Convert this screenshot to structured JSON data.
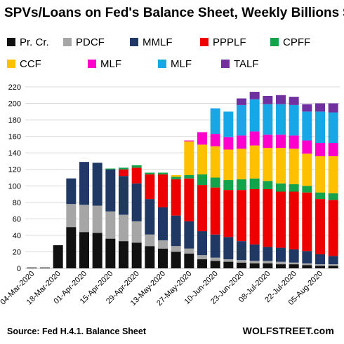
{
  "title": "SPVs/Loans  on Fed's Balance Sheet, Weekly Billions $",
  "source": "Source: Fed H.4.1. Balance Sheet",
  "brand": "WOLFSTREET.com",
  "chart_data": {
    "type": "bar",
    "stacked": true,
    "grid": true,
    "legend_position": "top",
    "ylim": [
      0,
      220
    ],
    "yticks": [
      0,
      20,
      40,
      60,
      80,
      100,
      120,
      140,
      160,
      180,
      200,
      220
    ],
    "categories": [
      "04-Mar-2020",
      "11-Mar-2020",
      "18-Mar-2020",
      "25-Mar-2020",
      "01-Apr-2020",
      "08-Apr-2020",
      "15-Apr-2020",
      "22-Apr-2020",
      "29-Apr-2020",
      "06-May-2020",
      "13-May-2020",
      "20-May-2020",
      "27-May-2020",
      "03-Jun-2020",
      "10-Jun-2020",
      "17-Jun-2020",
      "23-Jun-2020",
      "01-Jul-2020",
      "08-Jul-2020",
      "15-Jul-2020",
      "22-Jul-2020",
      "29-Jul-2020",
      "05-Aug-2020",
      "12-Aug-2020"
    ],
    "x_tick_labels": [
      "04-Mar-2020",
      "18-Mar-2020",
      "01-Apr-2020",
      "15-Apr-2020",
      "29-Apr-2020",
      "13-May-2020",
      "27-May-2020",
      "10-Jun-2020",
      "23-Jun-2020",
      "08-Jul-2020",
      "22-Jul-2020",
      "05-Aug-2020"
    ],
    "series": [
      {
        "name": "Pr. Cr.",
        "color": "#111111",
        "values": [
          1,
          1,
          28,
          50,
          44,
          43,
          36,
          33,
          31,
          27,
          24,
          20,
          18,
          11,
          9,
          8,
          7,
          6,
          6,
          5,
          5,
          4,
          3,
          3
        ]
      },
      {
        "name": "PDCF",
        "color": "#a6a6a6",
        "values": [
          0,
          0,
          0,
          28,
          33,
          33,
          33,
          32,
          26,
          14,
          10,
          7,
          6,
          5,
          4,
          3,
          3,
          3,
          3,
          3,
          2,
          2,
          2,
          2
        ]
      },
      {
        "name": "MMLF",
        "color": "#1f3864",
        "values": [
          0,
          0,
          0,
          31,
          52,
          52,
          51,
          47,
          46,
          43,
          40,
          37,
          33,
          29,
          28,
          27,
          23,
          20,
          17,
          17,
          16,
          15,
          12,
          10
        ]
      },
      {
        "name": "PPPLF",
        "color": "#ee0000",
        "values": [
          0,
          0,
          0,
          0,
          0,
          0,
          0,
          8,
          19,
          30,
          40,
          44,
          52,
          56,
          57,
          57,
          62,
          67,
          70,
          68,
          70,
          71,
          67,
          68
        ]
      },
      {
        "name": "CPFF",
        "color": "#13a34a",
        "values": [
          0,
          0,
          0,
          0,
          0,
          0,
          1,
          2,
          3,
          2,
          2,
          3,
          4,
          13,
          12,
          12,
          13,
          13,
          10,
          10,
          9,
          8,
          8,
          8
        ]
      },
      {
        "name": "CCF",
        "color": "#ffc000",
        "values": [
          0,
          0,
          0,
          0,
          0,
          0,
          0,
          0,
          0,
          0,
          0,
          2,
          41,
          36,
          38,
          37,
          37,
          40,
          40,
          43,
          43,
          39,
          44,
          45
        ]
      },
      {
        "name": "MLF",
        "color": "#ff00cc",
        "values": [
          0,
          0,
          0,
          0,
          0,
          0,
          0,
          0,
          0,
          0,
          0,
          0,
          1,
          15,
          15,
          15,
          16,
          17,
          16,
          16,
          16,
          16,
          16,
          16
        ]
      },
      {
        "name": "MLF",
        "color": "#18a7e6",
        "values": [
          0,
          0,
          0,
          0,
          0,
          0,
          0,
          0,
          0,
          0,
          0,
          0,
          0,
          0,
          31,
          31,
          37,
          39,
          37,
          37,
          37,
          35,
          38,
          37
        ]
      },
      {
        "name": "TALF",
        "color": "#7030a0",
        "values": [
          0,
          0,
          0,
          0,
          0,
          0,
          0,
          0,
          0,
          0,
          0,
          0,
          0,
          0,
          0,
          0,
          8,
          9,
          10,
          11,
          10,
          9,
          10,
          11
        ]
      }
    ]
  }
}
